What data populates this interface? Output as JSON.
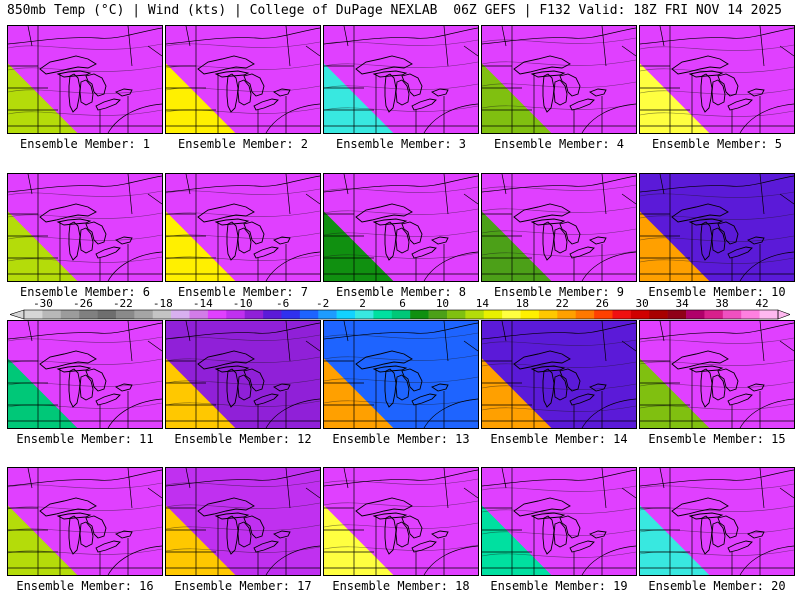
{
  "header": {
    "left": "850mb Temp (°C) | Wind (kts) | College of DuPage NEXLAB",
    "right": "06Z GEFS | F132 Valid: 18Z FRI NOV 14 2025"
  },
  "colorbar": {
    "ticks": [
      "-30",
      "-26",
      "-22",
      "-18",
      "-14",
      "-10",
      "-6",
      "-2",
      "2",
      "6",
      "10",
      "14",
      "18",
      "22",
      "26",
      "30",
      "34",
      "38",
      "42"
    ],
    "colors": [
      "#d6d6d6",
      "#b8b8b8",
      "#9c9c9c",
      "#808080",
      "#6e6e6e",
      "#8a8a8a",
      "#a5a5a5",
      "#c4c4c4",
      "#d8b0f0",
      "#d27ce8",
      "#e040ff",
      "#c030f0",
      "#9020d8",
      "#5b1ad8",
      "#3030ee",
      "#1e64ff",
      "#1e9cff",
      "#12d2ff",
      "#38e8e0",
      "#00e0a0",
      "#00c878",
      "#109010",
      "#4ca018",
      "#80c010",
      "#b4dc0a",
      "#e8f000",
      "#ffff40",
      "#fff000",
      "#ffc800",
      "#ffa000",
      "#ff7800",
      "#ff4000",
      "#f01010",
      "#d00000",
      "#a80000",
      "#900018",
      "#b0006a",
      "#d8208c",
      "#f050c0",
      "#ff80e0",
      "#ffb8f0"
    ]
  },
  "members": [
    {
      "label": "Ensemble Member: 1",
      "warmth": 0.55
    },
    {
      "label": "Ensemble Member: 2",
      "warmth": 0.7
    },
    {
      "label": "Ensemble Member: 3",
      "warmth": 0.25
    },
    {
      "label": "Ensemble Member: 4",
      "warmth": 0.5
    },
    {
      "label": "Ensemble Member: 5",
      "warmth": 0.62
    },
    {
      "label": "Ensemble Member: 6",
      "warmth": 0.55
    },
    {
      "label": "Ensemble Member: 7",
      "warmth": 0.68
    },
    {
      "label": "Ensemble Member: 8",
      "warmth": 0.4
    },
    {
      "label": "Ensemble Member: 9",
      "warmth": 0.45
    },
    {
      "label": "Ensemble Member: 10",
      "warmth": 0.8
    },
    {
      "label": "Ensemble Member: 11",
      "warmth": 0.35
    },
    {
      "label": "Ensemble Member: 12",
      "warmth": 0.75
    },
    {
      "label": "Ensemble Member: 13",
      "warmth": 0.92
    },
    {
      "label": "Ensemble Member: 14",
      "warmth": 0.85
    },
    {
      "label": "Ensemble Member: 15",
      "warmth": 0.48
    },
    {
      "label": "Ensemble Member: 16",
      "warmth": 0.52
    },
    {
      "label": "Ensemble Member: 17",
      "warmth": 0.72
    },
    {
      "label": "Ensemble Member: 18",
      "warmth": 0.65
    },
    {
      "label": "Ensemble Member: 19",
      "warmth": 0.3
    },
    {
      "label": "Ensemble Member: 20",
      "warmth": 0.22
    }
  ]
}
